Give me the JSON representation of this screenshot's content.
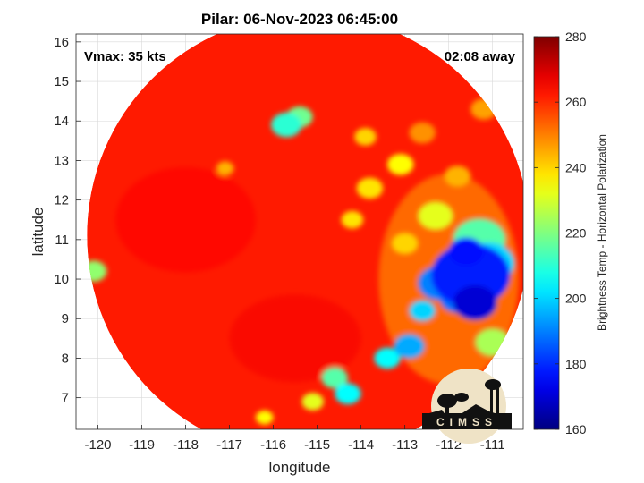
{
  "chart_data": {
    "type": "heatmap",
    "title": "Pilar: 06-Nov-2023 06:45:00",
    "xlabel": "longitude",
    "ylabel": "latitude",
    "xlim": [
      -120.5,
      -110.3
    ],
    "ylim": [
      6.2,
      16.2
    ],
    "xticks": [
      -120,
      -119,
      -118,
      -117,
      -116,
      -115,
      -114,
      -113,
      -112,
      -111
    ],
    "yticks": [
      7,
      8,
      9,
      10,
      11,
      12,
      13,
      14,
      15,
      16
    ],
    "grid": true,
    "annotations": {
      "left": "Vmax: 35 kts",
      "right": "02:08 away"
    },
    "colorbar": {
      "label": "Brightness Temp - Horizontal Polarization",
      "range": [
        160,
        280
      ],
      "ticks": [
        160,
        180,
        200,
        220,
        240,
        260,
        280
      ],
      "colormap": "jet",
      "position": "right"
    },
    "swath": {
      "center": [
        -115.2,
        11.1
      ],
      "radius_deg": 5.05,
      "background_value": 262
    },
    "features": [
      {
        "lon": -111.5,
        "lat": 10.1,
        "value": 178,
        "size": 0.9
      },
      {
        "lon": -111.4,
        "lat": 9.4,
        "value": 170,
        "size": 0.5
      },
      {
        "lon": -111.6,
        "lat": 10.7,
        "value": 176,
        "size": 0.4
      },
      {
        "lon": -112.2,
        "lat": 9.9,
        "value": 190,
        "size": 0.5
      },
      {
        "lon": -111.8,
        "lat": 9.5,
        "value": 188,
        "size": 0.4
      },
      {
        "lon": -111.1,
        "lat": 10.4,
        "value": 200,
        "size": 0.6
      },
      {
        "lon": -111.3,
        "lat": 11.0,
        "value": 215,
        "size": 0.6
      },
      {
        "lon": -112.9,
        "lat": 8.3,
        "value": 195,
        "size": 0.35
      },
      {
        "lon": -112.6,
        "lat": 9.2,
        "value": 200,
        "size": 0.3
      },
      {
        "lon": -113.4,
        "lat": 8.0,
        "value": 205,
        "size": 0.3
      },
      {
        "lon": -114.3,
        "lat": 7.1,
        "value": 205,
        "size": 0.3
      },
      {
        "lon": -114.6,
        "lat": 7.5,
        "value": 215,
        "size": 0.3
      },
      {
        "lon": -115.7,
        "lat": 13.9,
        "value": 210,
        "size": 0.35
      },
      {
        "lon": -115.4,
        "lat": 14.1,
        "value": 218,
        "size": 0.3
      },
      {
        "lon": -120.1,
        "lat": 10.2,
        "value": 222,
        "size": 0.3
      },
      {
        "lon": -113.1,
        "lat": 12.9,
        "value": 235,
        "size": 0.3
      },
      {
        "lon": -113.8,
        "lat": 12.3,
        "value": 238,
        "size": 0.3
      },
      {
        "lon": -114.2,
        "lat": 11.5,
        "value": 238,
        "size": 0.25
      },
      {
        "lon": -113.9,
        "lat": 13.6,
        "value": 240,
        "size": 0.25
      },
      {
        "lon": -111.0,
        "lat": 8.4,
        "value": 225,
        "size": 0.4
      },
      {
        "lon": -112.3,
        "lat": 11.6,
        "value": 232,
        "size": 0.4
      },
      {
        "lon": -113.0,
        "lat": 10.9,
        "value": 240,
        "size": 0.3
      },
      {
        "lon": -115.1,
        "lat": 6.9,
        "value": 232,
        "size": 0.25
      },
      {
        "lon": -116.2,
        "lat": 6.5,
        "value": 235,
        "size": 0.2
      },
      {
        "lon": -117.1,
        "lat": 12.8,
        "value": 244,
        "size": 0.2
      },
      {
        "lon": -111.2,
        "lat": 14.3,
        "value": 246,
        "size": 0.3
      },
      {
        "lon": -111.8,
        "lat": 12.6,
        "value": 244,
        "size": 0.3
      },
      {
        "lon": -112.6,
        "lat": 13.7,
        "value": 248,
        "size": 0.3
      }
    ]
  },
  "logo": {
    "text": "CIMSS"
  }
}
